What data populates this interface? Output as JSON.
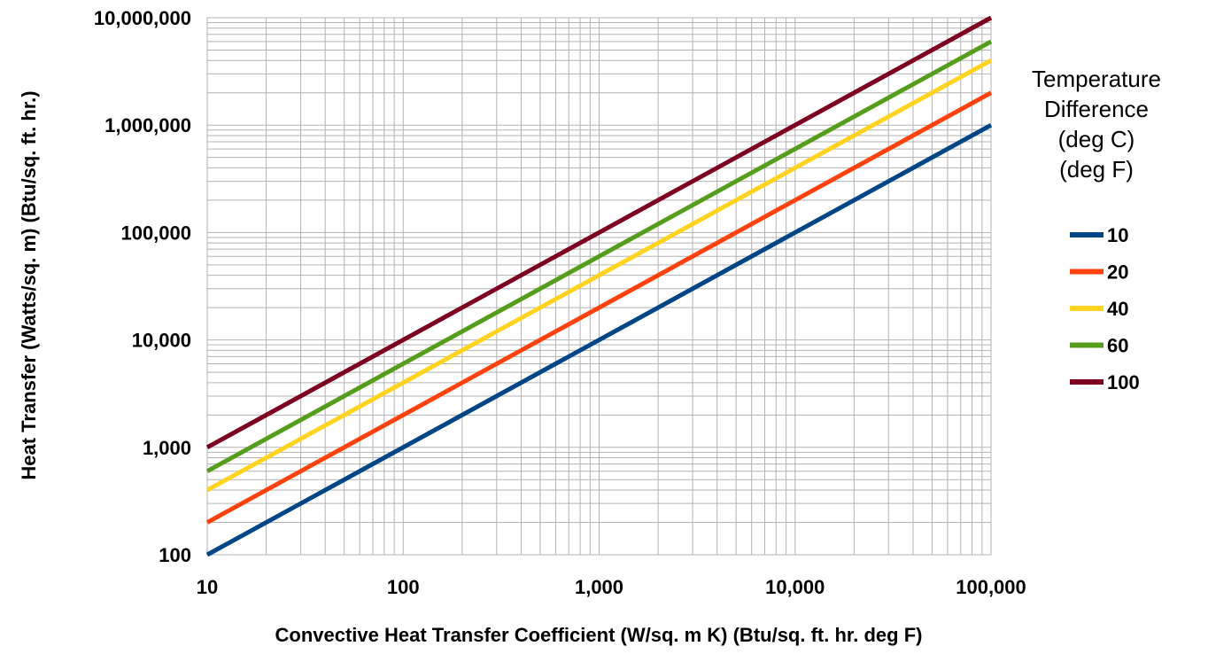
{
  "chart_data": {
    "type": "line",
    "x_scale": "log",
    "y_scale": "log",
    "xlim": [
      10,
      100000
    ],
    "ylim": [
      100,
      10000000
    ],
    "grid": true,
    "legend_position": "right",
    "xlabel": "Convective Heat Transfer Coefficient (W/sq. m K) (Btu/sq. ft. hr. deg F)",
    "ylabel": "Heat Transfer (Watts/sq. m) (Btu/sq. ft. hr.)",
    "legend_title": [
      "Temperature",
      "Difference",
      "(deg C)",
      "(deg F)"
    ],
    "x_ticks": [
      {
        "value": 10,
        "label": "10"
      },
      {
        "value": 100,
        "label": "100"
      },
      {
        "value": 1000,
        "label": "1,000"
      },
      {
        "value": 10000,
        "label": "10,000"
      },
      {
        "value": 100000,
        "label": "100,000"
      }
    ],
    "y_ticks": [
      {
        "value": 100,
        "label": "100"
      },
      {
        "value": 1000,
        "label": "1,000"
      },
      {
        "value": 10000,
        "label": "10,000"
      },
      {
        "value": 100000,
        "label": "100,000"
      },
      {
        "value": 1000000,
        "label": "1,000,000"
      },
      {
        "value": 10000000,
        "label": "10,000,000"
      }
    ],
    "series": [
      {
        "name": "10",
        "color": "#004586",
        "x": [
          10,
          100000
        ],
        "y": [
          100,
          1000000
        ]
      },
      {
        "name": "20",
        "color": "#ff420e",
        "x": [
          10,
          100000
        ],
        "y": [
          200,
          2000000
        ]
      },
      {
        "name": "40",
        "color": "#ffd320",
        "x": [
          10,
          100000
        ],
        "y": [
          400,
          4000000
        ]
      },
      {
        "name": "60",
        "color": "#579d1c",
        "x": [
          10,
          100000
        ],
        "y": [
          600,
          6000000
        ]
      },
      {
        "name": "100",
        "color": "#7e0021",
        "x": [
          10,
          100000
        ],
        "y": [
          1000,
          10000000
        ]
      }
    ]
  }
}
